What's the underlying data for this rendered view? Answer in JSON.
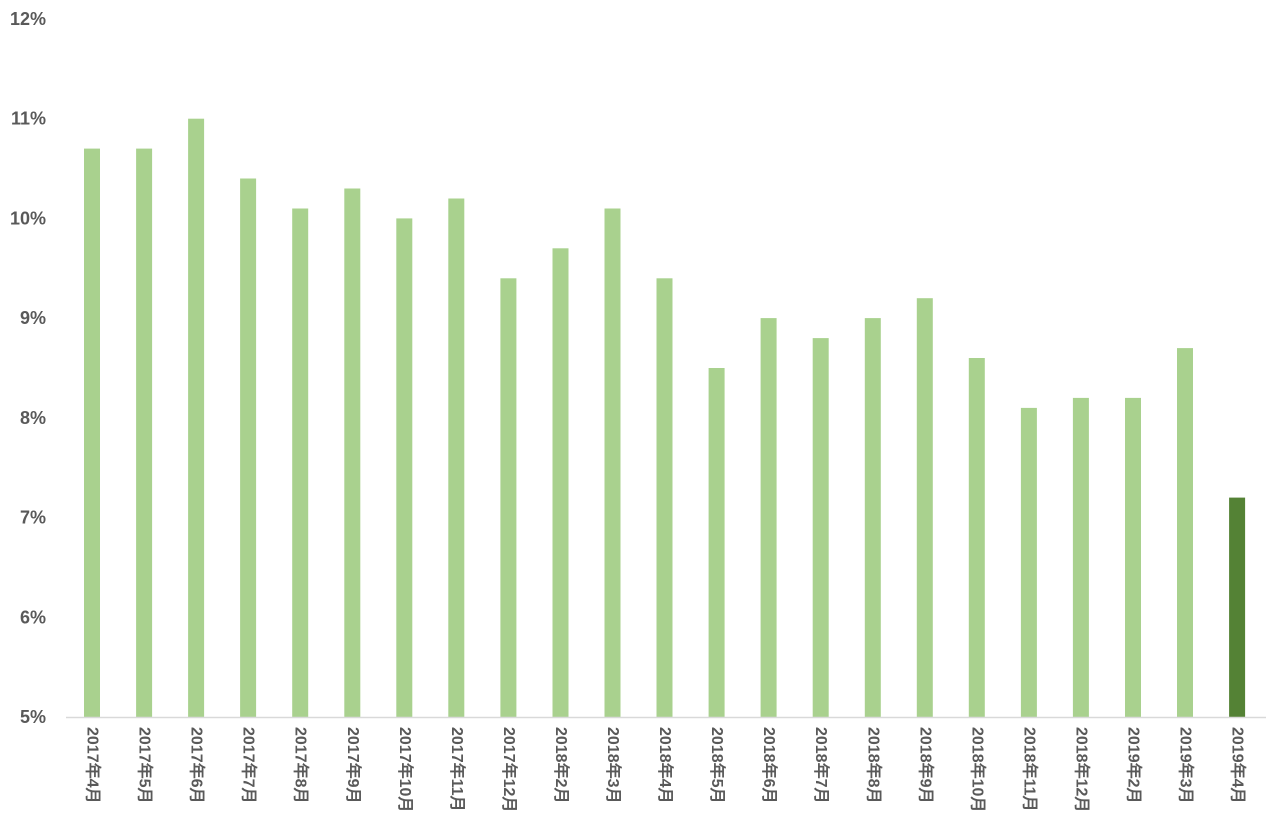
{
  "chart_data": {
    "type": "bar",
    "title": "",
    "xlabel": "",
    "ylabel": "",
    "ylim": [
      5,
      12
    ],
    "y_ticks": [
      "5%",
      "6%",
      "7%",
      "8%",
      "9%",
      "10%",
      "11%",
      "12%"
    ],
    "y_tick_values": [
      5,
      6,
      7,
      8,
      9,
      10,
      11,
      12
    ],
    "grid": false,
    "legend": "none",
    "categories": [
      "2017年4月",
      "2017年5月",
      "2017年6月",
      "2017年7月",
      "2017年8月",
      "2017年9月",
      "2017年10月",
      "2017年11月",
      "2017年12月",
      "2018年2月",
      "2018年3月",
      "2018年4月",
      "2018年5月",
      "2018年6月",
      "2018年7月",
      "2018年8月",
      "2018年9月",
      "2018年10月",
      "2018年11月",
      "2018年12月",
      "2019年2月",
      "2019年3月",
      "2019年4月"
    ],
    "values": [
      10.7,
      10.7,
      11.0,
      10.4,
      10.1,
      10.3,
      10.0,
      10.2,
      9.4,
      9.7,
      10.1,
      9.4,
      8.5,
      9.0,
      8.8,
      9.0,
      9.2,
      8.6,
      8.1,
      8.2,
      8.2,
      8.7,
      7.2
    ],
    "colors": {
      "bar": "#a9d18e",
      "highlight_bar": "#548235",
      "axis": "#d9d9d9",
      "text": "#595959"
    },
    "highlight_index": 22
  }
}
